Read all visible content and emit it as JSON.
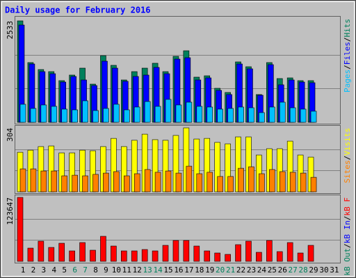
{
  "chart_data": [
    {
      "type": "bar",
      "title": "Daily usage for February 2016",
      "ylim": [
        0,
        2533
      ],
      "yticks": [
        2533
      ],
      "grid": true,
      "legend_separator": "/",
      "series": [
        {
          "name": "Hits",
          "color": "#00805c",
          "values": [
            2533,
            1492,
            1318,
            1266,
            1041,
            1180,
            1353,
            954,
            1665,
            1423,
            1058,
            1266,
            1353,
            1475,
            1266,
            1648,
            1787,
            1128,
            1162,
            850,
            746,
            1509,
            1388,
            694,
            1492,
            1093,
            1110,
            1041,
            1041,
            null,
            null
          ]
        },
        {
          "name": "Files",
          "color": "#0000ff",
          "values": [
            2429,
            1457,
            1266,
            1214,
            1006,
            1145,
            1058,
            919,
            1527,
            1353,
            1024,
            1145,
            1180,
            1371,
            1214,
            1579,
            1613,
            1058,
            1110,
            798,
            694,
            1457,
            1336,
            677,
            1440,
            937,
            1058,
            1006,
            989,
            null,
            null
          ]
        },
        {
          "name": "Pages",
          "color": "#00c0ff",
          "values": [
            451,
            347,
            434,
            399,
            330,
            312,
            538,
            295,
            347,
            451,
            312,
            382,
            520,
            399,
            573,
            434,
            503,
            399,
            382,
            330,
            347,
            382,
            364,
            243,
            382,
            503,
            364,
            330,
            278,
            null,
            null
          ]
        }
      ]
    },
    {
      "type": "bar",
      "ylim": [
        0,
        304
      ],
      "yticks": [
        304
      ],
      "grid": true,
      "legend_separator": "/",
      "series": [
        {
          "name": "Visits",
          "color": "#ffff00",
          "values": [
            188,
            198,
            215,
            218,
            185,
            185,
            198,
            195,
            215,
            254,
            215,
            245,
            274,
            248,
            245,
            268,
            304,
            251,
            254,
            235,
            228,
            261,
            261,
            175,
            205,
            205,
            241,
            175,
            165,
            null,
            null
          ]
        },
        {
          "name": "Sites",
          "color": "#ff8000",
          "values": [
            109,
            109,
            99,
            99,
            76,
            79,
            76,
            83,
            89,
            96,
            76,
            86,
            106,
            93,
            99,
            89,
            122,
            86,
            93,
            73,
            73,
            112,
            119,
            86,
            106,
            96,
            93,
            89,
            69,
            null,
            null
          ]
        }
      ]
    },
    {
      "type": "bar",
      "ylim": [
        0,
        123647
      ],
      "yticks": [
        123647
      ],
      "grid": true,
      "legend_separator": "/",
      "categories": [
        "1",
        "2",
        "3",
        "4",
        "5",
        "6",
        "7",
        "8",
        "9",
        "10",
        "11",
        "12",
        "13",
        "14",
        "15",
        "16",
        "17",
        "18",
        "19",
        "20",
        "21",
        "22",
        "23",
        "24",
        "25",
        "26",
        "27",
        "28",
        "29",
        "30",
        "31"
      ],
      "weekend_indices": [
        5,
        6,
        12,
        13,
        19,
        20,
        26,
        27
      ],
      "weekend_color": "#00805c",
      "series": [
        {
          "name": "kB F",
          "color": "#ff0000",
          "values": [
            123647,
            25535,
            38976,
            26880,
            34944,
            20160,
            36288,
            21504,
            48384,
            29568,
            20160,
            20160,
            22848,
            20160,
            30912,
            40320,
            40320,
            29568,
            20160,
            16128,
            13440,
            32256,
            38976,
            17472,
            40320,
            18816,
            36288,
            16128,
            30912,
            null,
            null
          ]
        },
        {
          "name": "kB In",
          "color": "#0000ff",
          "values": [
            0,
            0,
            0,
            0,
            0,
            0,
            0,
            0,
            0,
            0,
            0,
            0,
            0,
            0,
            0,
            0,
            0,
            0,
            0,
            0,
            0,
            0,
            0,
            0,
            0,
            0,
            0,
            0,
            0,
            null,
            null
          ]
        },
        {
          "name": "kB Out",
          "color": "#00805c",
          "values": [
            0,
            0,
            0,
            0,
            0,
            0,
            0,
            0,
            0,
            0,
            0,
            0,
            0,
            0,
            0,
            0,
            0,
            0,
            0,
            0,
            0,
            0,
            0,
            0,
            0,
            0,
            0,
            0,
            0,
            null,
            null
          ]
        }
      ]
    }
  ]
}
